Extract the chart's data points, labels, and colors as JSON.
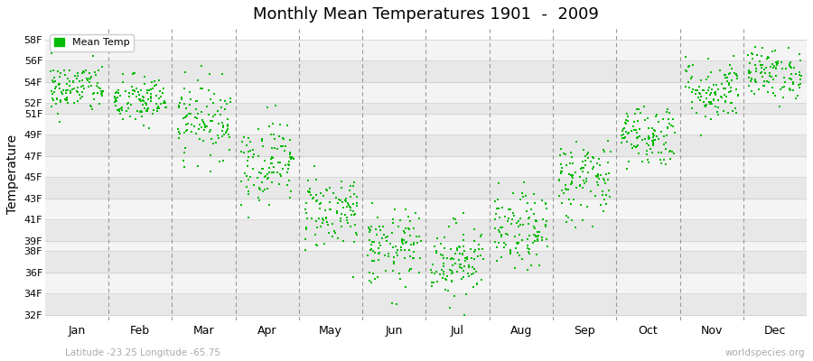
{
  "title": "Monthly Mean Temperatures 1901  -  2009",
  "ylabel": "Temperature",
  "xlabel_bottom": "Latitude -23.25 Longitude -65.75",
  "watermark": "worldspecies.org",
  "legend_label": "Mean Temp",
  "marker_color": "#00BB00",
  "background_color": "#FFFFFF",
  "stripe_color_dark": "#E8E8E8",
  "stripe_color_light": "#F4F4F4",
  "ytick_labels": [
    "32F",
    "34F",
    "36F",
    "38F",
    "39F",
    "41F",
    "43F",
    "45F",
    "47F",
    "49F",
    "51F",
    "52F",
    "54F",
    "56F",
    "58F"
  ],
  "ytick_values": [
    32,
    34,
    36,
    38,
    39,
    41,
    43,
    45,
    47,
    49,
    51,
    52,
    54,
    56,
    58
  ],
  "ylim": [
    31.5,
    59
  ],
  "month_names": [
    "Jan",
    "Feb",
    "Mar",
    "Apr",
    "May",
    "Jun",
    "Jul",
    "Aug",
    "Sep",
    "Oct",
    "Nov",
    "Dec"
  ],
  "monthly_mean_F": [
    53.4,
    52.2,
    50.5,
    46.5,
    41.8,
    38.2,
    37.2,
    39.8,
    44.8,
    49.0,
    53.2,
    54.8
  ],
  "monthly_std_F": [
    1.2,
    1.2,
    1.8,
    2.0,
    1.8,
    1.8,
    1.8,
    1.8,
    2.0,
    1.5,
    1.5,
    1.2
  ],
  "n_years": 109,
  "seed": 42
}
